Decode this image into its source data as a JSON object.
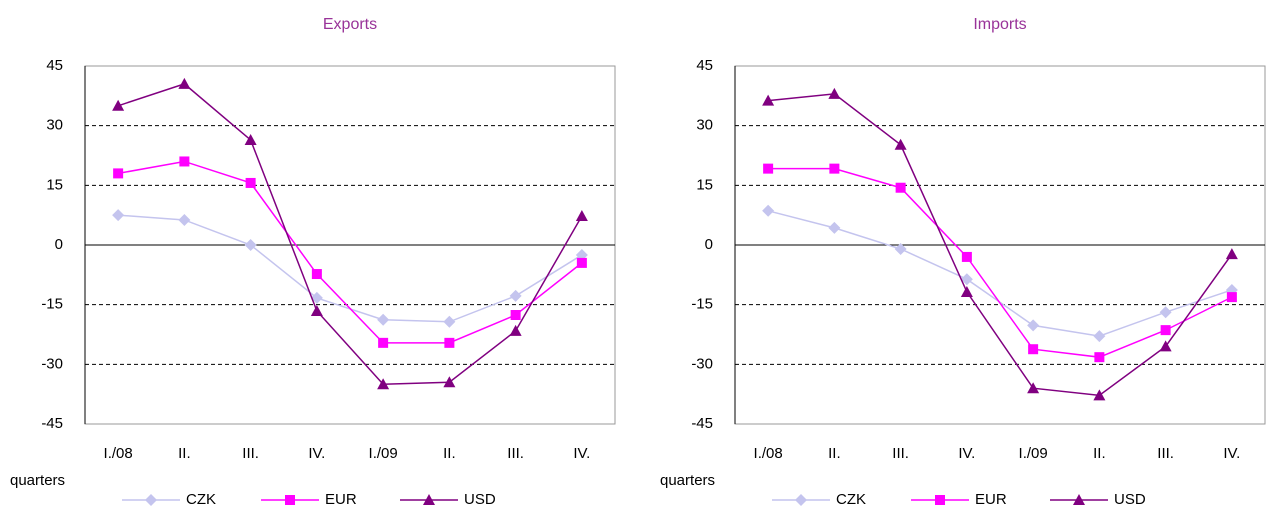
{
  "chart_data": [
    {
      "type": "line",
      "title": "Exports",
      "x_label": "quarters",
      "categories": [
        "I./08",
        "II.",
        "III.",
        "IV.",
        "I./09",
        "II.",
        "III.",
        "IV."
      ],
      "ylim": [
        -45,
        45
      ],
      "yticks": [
        -45,
        -30,
        -15,
        0,
        15,
        30,
        45
      ],
      "grid": true,
      "series": [
        {
          "name": "CZK",
          "color": "#c4c4ee",
          "marker": "diamond",
          "values": [
            7.5,
            6.3,
            0,
            -13.3,
            -18.8,
            -19.3,
            -12.8,
            -2.5
          ]
        },
        {
          "name": "EUR",
          "color": "#ff00ff",
          "marker": "square",
          "values": [
            18,
            21,
            15.6,
            -7.3,
            -24.6,
            -24.6,
            -17.6,
            -4.5
          ]
        },
        {
          "name": "USD",
          "color": "#800080",
          "marker": "triangle",
          "values": [
            35,
            40.5,
            26.4,
            -16.6,
            -35,
            -34.5,
            -21.6,
            7.3
          ]
        }
      ]
    },
    {
      "type": "line",
      "title": "Imports",
      "x_label": "quarters",
      "categories": [
        "I./08",
        "II.",
        "III.",
        "IV.",
        "I./09",
        "II.",
        "III.",
        "IV."
      ],
      "ylim": [
        -45,
        45
      ],
      "yticks": [
        -45,
        -30,
        -15,
        0,
        15,
        30,
        45
      ],
      "grid": true,
      "series": [
        {
          "name": "CZK",
          "color": "#c4c4ee",
          "marker": "diamond",
          "values": [
            8.6,
            4.3,
            -1,
            -8.6,
            -20.2,
            -22.9,
            -16.9,
            -11.3
          ]
        },
        {
          "name": "EUR",
          "color": "#ff00ff",
          "marker": "square",
          "values": [
            19.2,
            19.2,
            14.4,
            -3,
            -26.2,
            -28.2,
            -21.4,
            -13.1
          ]
        },
        {
          "name": "USD",
          "color": "#800080",
          "marker": "triangle",
          "values": [
            36.3,
            38,
            25.2,
            -11.8,
            -36,
            -37.8,
            -25.5,
            -2.3
          ]
        }
      ]
    }
  ]
}
